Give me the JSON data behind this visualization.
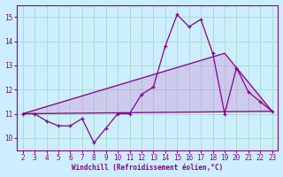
{
  "x": [
    2,
    3,
    4,
    5,
    6,
    7,
    8,
    9,
    10,
    11,
    12,
    13,
    14,
    15,
    16,
    17,
    18,
    19,
    20,
    21,
    22,
    23
  ],
  "y_line": [
    11,
    11,
    10.7,
    10.5,
    10.5,
    10.8,
    9.8,
    10.4,
    11,
    11,
    11.8,
    12.1,
    13.8,
    15.1,
    14.6,
    14.9,
    13.5,
    11,
    12.9,
    11.9,
    11.5,
    11.1
  ],
  "line_color": "#880088",
  "background_color": "#cceeff",
  "grid_color": "#aaddcc",
  "text_color": "#880088",
  "xlabel": "Windchill (Refroidissement éolien,°C)",
  "xlim": [
    1.5,
    23.5
  ],
  "ylim": [
    9.5,
    15.5
  ],
  "yticks": [
    10,
    11,
    12,
    13,
    14,
    15
  ],
  "xticks": [
    2,
    3,
    4,
    5,
    6,
    7,
    8,
    9,
    10,
    11,
    12,
    13,
    14,
    15,
    16,
    17,
    18,
    19,
    20,
    21,
    22,
    23
  ],
  "upper_line_x": [
    2,
    19,
    23
  ],
  "upper_line_y": [
    11,
    13.5,
    11.1
  ],
  "lower_line_x": [
    2,
    23
  ],
  "lower_line_y": [
    11,
    11.1
  ],
  "poly_x": [
    2,
    19,
    23,
    23,
    2
  ],
  "poly_y": [
    11,
    13.5,
    11.1,
    11.1,
    11
  ],
  "marker": "+"
}
